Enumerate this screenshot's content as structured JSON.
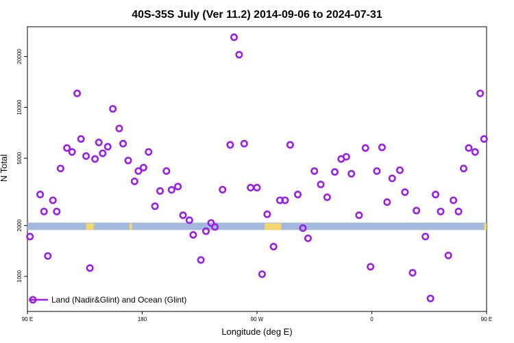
{
  "chart_data": {
    "type": "scatter",
    "title": "40S-35S July (Ver 11.2)   2014-09-06 to 2024-07-31",
    "xlabel": "Longitude (deg E)",
    "ylabel": "N Total",
    "y_scale": "log",
    "xlim": [
      90,
      450
    ],
    "ylim": [
      620,
      30000
    ],
    "x_ticks": [
      {
        "value": 90,
        "label": "90 E"
      },
      {
        "value": 180,
        "label": "180"
      },
      {
        "value": 270,
        "label": "90 W"
      },
      {
        "value": 360,
        "label": "0"
      },
      {
        "value": 450,
        "label": "90 E"
      },
      {
        "value": 540,
        "label": "180"
      }
    ],
    "y_ticks": [
      {
        "value": 1000,
        "label": "1000"
      },
      {
        "value": 2000,
        "label": "2000"
      },
      {
        "value": 5000,
        "label": "5000"
      },
      {
        "value": 10000,
        "label": "10000"
      },
      {
        "value": 20000,
        "label": "20000"
      }
    ],
    "grid": false,
    "legend_position": "bottom-left",
    "series": [
      {
        "name": "Land (Nadir&Glint) and Ocean (Glint)",
        "color": "#9b1ee6",
        "marker": "open-circle",
        "points": [
          {
            "x": 92,
            "y": 1720
          },
          {
            "x": 100,
            "y": 3050
          },
          {
            "x": 103,
            "y": 2420
          },
          {
            "x": 106,
            "y": 1320
          },
          {
            "x": 110,
            "y": 2820
          },
          {
            "x": 113,
            "y": 2420
          },
          {
            "x": 116,
            "y": 4350
          },
          {
            "x": 121,
            "y": 5750
          },
          {
            "x": 125,
            "y": 5450
          },
          {
            "x": 129,
            "y": 12100
          },
          {
            "x": 132,
            "y": 6500
          },
          {
            "x": 136,
            "y": 5150
          },
          {
            "x": 139,
            "y": 1120
          },
          {
            "x": 143,
            "y": 4950
          },
          {
            "x": 146,
            "y": 6200
          },
          {
            "x": 149,
            "y": 5350
          },
          {
            "x": 153,
            "y": 5850
          },
          {
            "x": 157,
            "y": 9800
          },
          {
            "x": 162,
            "y": 7500
          },
          {
            "x": 165,
            "y": 6100
          },
          {
            "x": 169,
            "y": 4850
          },
          {
            "x": 174,
            "y": 3650
          },
          {
            "x": 177,
            "y": 4200
          },
          {
            "x": 181,
            "y": 4400
          },
          {
            "x": 185,
            "y": 5450
          },
          {
            "x": 190,
            "y": 2600
          },
          {
            "x": 194,
            "y": 3200
          },
          {
            "x": 199,
            "y": 4200
          },
          {
            "x": 203,
            "y": 3250
          },
          {
            "x": 208,
            "y": 3400
          },
          {
            "x": 212,
            "y": 2300
          },
          {
            "x": 217,
            "y": 2150
          },
          {
            "x": 220,
            "y": 1760
          },
          {
            "x": 226,
            "y": 1250
          },
          {
            "x": 230,
            "y": 1850
          },
          {
            "x": 234,
            "y": 2070
          },
          {
            "x": 237,
            "y": 1960
          },
          {
            "x": 243,
            "y": 3260
          },
          {
            "x": 249,
            "y": 6000
          },
          {
            "x": 252,
            "y": 26000
          },
          {
            "x": 256,
            "y": 20500
          },
          {
            "x": 260,
            "y": 6100
          },
          {
            "x": 265,
            "y": 3350
          },
          {
            "x": 270,
            "y": 3350
          },
          {
            "x": 274,
            "y": 1030
          },
          {
            "x": 278,
            "y": 2330
          },
          {
            "x": 283,
            "y": 1500
          },
          {
            "x": 288,
            "y": 2820
          },
          {
            "x": 292,
            "y": 2820
          },
          {
            "x": 296,
            "y": 6000
          },
          {
            "x": 302,
            "y": 3050
          },
          {
            "x": 306,
            "y": 1930
          },
          {
            "x": 310,
            "y": 1680
          },
          {
            "x": 315,
            "y": 4200
          },
          {
            "x": 320,
            "y": 3500
          },
          {
            "x": 325,
            "y": 2940
          },
          {
            "x": 331,
            "y": 4150
          },
          {
            "x": 336,
            "y": 4950
          },
          {
            "x": 340,
            "y": 5100
          },
          {
            "x": 344,
            "y": 4050
          },
          {
            "x": 350,
            "y": 2300
          },
          {
            "x": 355,
            "y": 5750
          },
          {
            "x": 359,
            "y": 1140
          },
          {
            "x": 364,
            "y": 4200
          },
          {
            "x": 368,
            "y": 5800
          },
          {
            "x": 372,
            "y": 2750
          },
          {
            "x": 376,
            "y": 3800
          },
          {
            "x": 382,
            "y": 4250
          },
          {
            "x": 386,
            "y": 3150
          },
          {
            "x": 392,
            "y": 1050
          },
          {
            "x": 395,
            "y": 2450
          },
          {
            "x": 402,
            "y": 1720
          },
          {
            "x": 406,
            "y": 740
          },
          {
            "x": 410,
            "y": 3050
          },
          {
            "x": 414,
            "y": 2420
          },
          {
            "x": 420,
            "y": 1330
          },
          {
            "x": 424,
            "y": 2820
          },
          {
            "x": 428,
            "y": 2420
          },
          {
            "x": 432,
            "y": 4350
          },
          {
            "x": 436,
            "y": 5750
          },
          {
            "x": 441,
            "y": 5450
          },
          {
            "x": 445,
            "y": 12100
          },
          {
            "x": 448,
            "y": 6500
          }
        ]
      }
    ],
    "land_strip": {
      "y_low": 1880,
      "y_high": 2080,
      "color": "#a3bade",
      "land_color": "#f5d76e",
      "land_segments": [
        [
          136,
          142
        ],
        [
          170,
          172
        ],
        [
          276,
          289
        ],
        [
          448,
          453
        ]
      ]
    }
  }
}
